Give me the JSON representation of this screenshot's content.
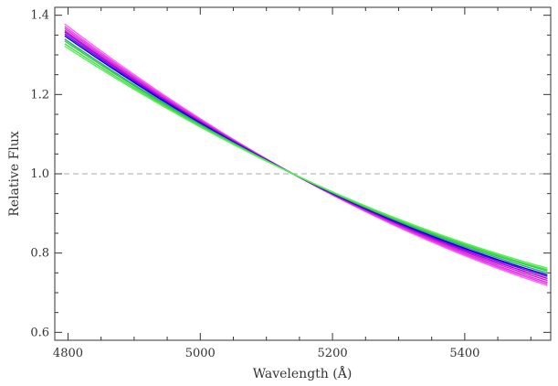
{
  "chart_data": {
    "type": "line",
    "title": "",
    "xlabel": "Wavelength (Å)",
    "ylabel": "Relative Flux",
    "xlim": [
      4780,
      5530
    ],
    "ylim": [
      0.58,
      1.42
    ],
    "xticks": [
      4800,
      5000,
      5200,
      5400
    ],
    "yticks": [
      0.6,
      0.8,
      1.0,
      1.2,
      1.4
    ],
    "xtick_labels": [
      "4800",
      "5000",
      "5200",
      "5400"
    ],
    "ytick_labels": [
      "0.6",
      "0.8",
      "1.0",
      "1.2",
      "1.4"
    ],
    "reference_line": {
      "y": 1.0,
      "style": "dashed",
      "color": "#aaaaaa"
    },
    "grid": false,
    "legend": "none",
    "pivot_wavelength": 5140,
    "curve_shape": "convex",
    "series": [
      {
        "color": "#ff66ff",
        "x": [
          4795,
          5140,
          5525
        ],
        "y": [
          1.378,
          1.0,
          0.718
        ]
      },
      {
        "color": "#ee44ee",
        "x": [
          4795,
          5140,
          5525
        ],
        "y": [
          1.372,
          1.0,
          0.722
        ]
      },
      {
        "color": "#dd33dd",
        "x": [
          4795,
          5140,
          5525
        ],
        "y": [
          1.367,
          1.0,
          0.726
        ]
      },
      {
        "color": "#cc22cc",
        "x": [
          4795,
          5140,
          5525
        ],
        "y": [
          1.362,
          1.0,
          0.731
        ]
      },
      {
        "color": "#aa00dd",
        "x": [
          4795,
          5140,
          5525
        ],
        "y": [
          1.358,
          1.0,
          0.736
        ]
      },
      {
        "color": "#6600ff",
        "x": [
          4795,
          5140,
          5525
        ],
        "y": [
          1.353,
          1.0,
          0.741
        ]
      },
      {
        "color": "#0000cc",
        "x": [
          4795,
          5140,
          5525
        ],
        "y": [
          1.348,
          1.0,
          0.745
        ]
      },
      {
        "color": "#22aa88",
        "x": [
          4795,
          5140,
          5525
        ],
        "y": [
          1.34,
          1.0,
          0.75
        ]
      },
      {
        "color": "#33cc33",
        "x": [
          4795,
          5140,
          5525
        ],
        "y": [
          1.335,
          1.0,
          0.755
        ]
      },
      {
        "color": "#44dd44",
        "x": [
          4795,
          5140,
          5525
        ],
        "y": [
          1.328,
          1.0,
          0.758
        ]
      },
      {
        "color": "#55ee55",
        "x": [
          4795,
          5140,
          5525
        ],
        "y": [
          1.322,
          1.0,
          0.762
        ]
      }
    ]
  }
}
